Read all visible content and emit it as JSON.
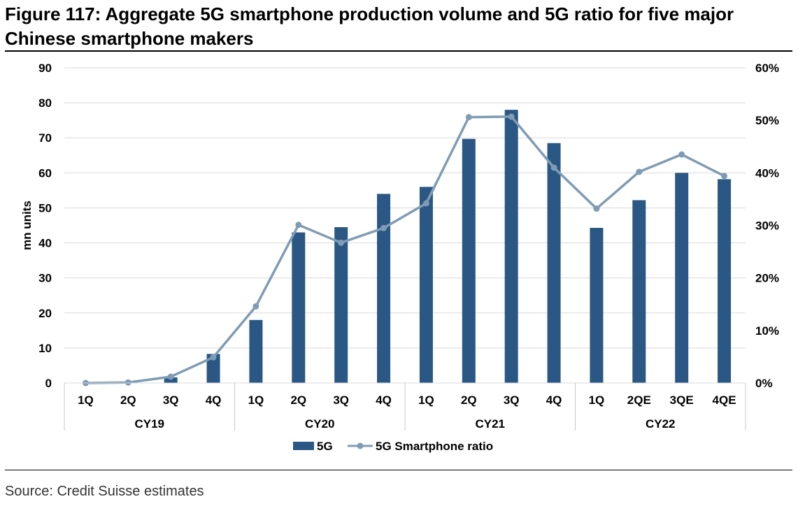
{
  "figure": {
    "title": "Figure 117: Aggregate 5G smartphone production volume and 5G ratio for five major Chinese smartphone makers",
    "source": "Source: Credit Suisse estimates"
  },
  "chart_data": {
    "type": "bar",
    "categories": [
      "1Q",
      "2Q",
      "3Q",
      "4Q",
      "1Q",
      "2Q",
      "3Q",
      "4Q",
      "1Q",
      "2Q",
      "3Q",
      "4Q",
      "1Q",
      "2QE",
      "3QE",
      "4QE"
    ],
    "groups": [
      {
        "label": "CY19",
        "count": 4
      },
      {
        "label": "CY20",
        "count": 4
      },
      {
        "label": "CY21",
        "count": 4
      },
      {
        "label": "CY22",
        "count": 4
      }
    ],
    "series": [
      {
        "name": "5G",
        "type": "bar",
        "axis": "left",
        "color": "#2A5783",
        "values": [
          0,
          0,
          1.6,
          8.3,
          18,
          43,
          44.5,
          54,
          56,
          69.7,
          78,
          68.5,
          44.3,
          52.2,
          60,
          58.2
        ]
      },
      {
        "name": "5G Smartphone ratio",
        "type": "line",
        "axis": "right",
        "color": "#7F9CB5",
        "values": [
          0.0,
          0.1,
          1.2,
          4.9,
          14.6,
          30.1,
          26.7,
          29.5,
          34.2,
          50.6,
          50.7,
          41.0,
          33.2,
          40.2,
          43.5,
          39.4
        ]
      }
    ],
    "ylabel": "mn units",
    "ylim": [
      0,
      90
    ],
    "yticks": [
      "0",
      "10",
      "20",
      "30",
      "40",
      "50",
      "60",
      "70",
      "80",
      "90"
    ],
    "y2lim": [
      0,
      60
    ],
    "y2ticks": [
      "0%",
      "10%",
      "20%",
      "30%",
      "40%",
      "50%",
      "60%"
    ],
    "grid": true,
    "legend": "bottom-center"
  }
}
